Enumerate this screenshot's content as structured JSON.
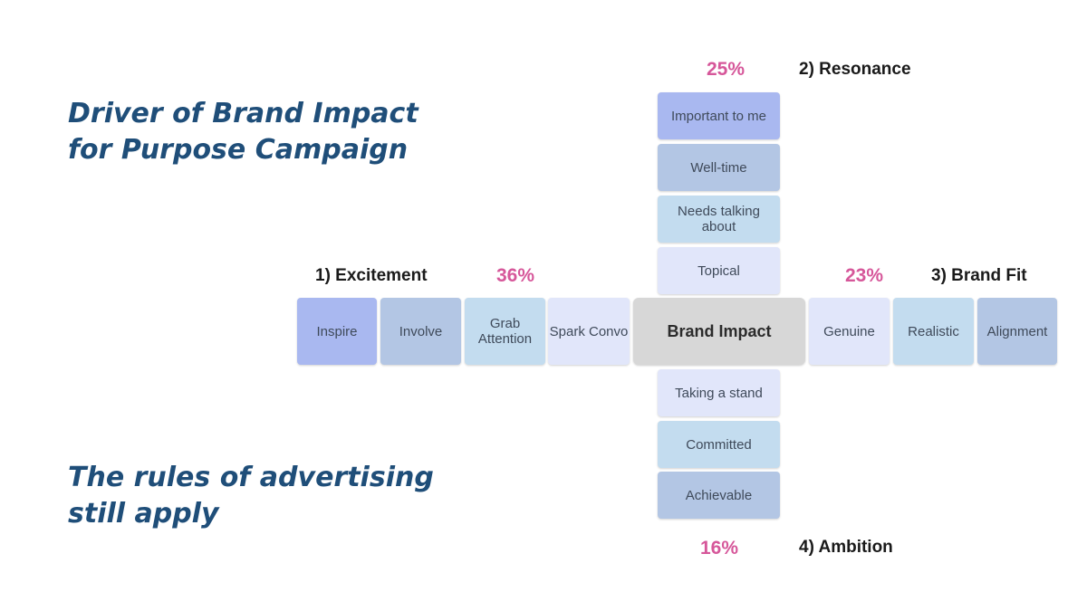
{
  "colors": {
    "title": "#1f4e79",
    "percent": "#d6579a",
    "hub": "#d7d7d7",
    "shade_1": "#a9b8f0",
    "shade_2": "#b3c6e4",
    "shade_3": "#c3dcef",
    "shade_4": "#e1e6fa"
  },
  "titles": {
    "top": [
      "Driver of Brand Impact",
      "for Purpose Campaign"
    ],
    "bottom": [
      "The rules of advertising",
      "still apply"
    ]
  },
  "hub": {
    "label": "Brand Impact"
  },
  "groups": {
    "excitement": {
      "label": "1) Excitement",
      "percent": "36%",
      "items": [
        {
          "label": "Inspire",
          "color": "#a9b8f0"
        },
        {
          "label": "Involve",
          "color": "#b3c6e4"
        },
        {
          "label": "Grab Attention",
          "color": "#c3dcef"
        },
        {
          "label": "Spark Convo",
          "color": "#e1e6fa"
        }
      ]
    },
    "resonance": {
      "label": "2) Resonance",
      "percent": "25%",
      "items": [
        {
          "label": "Important to me",
          "color": "#a9b8f0"
        },
        {
          "label": "Well-time",
          "color": "#b3c6e4"
        },
        {
          "label": "Needs talking about",
          "color": "#c3dcef"
        },
        {
          "label": "Topical",
          "color": "#e1e6fa"
        }
      ]
    },
    "brand_fit": {
      "label": "3) Brand Fit",
      "percent": "23%",
      "items": [
        {
          "label": "Genuine",
          "color": "#e1e6fa"
        },
        {
          "label": "Realistic",
          "color": "#c3dcef"
        },
        {
          "label": "Alignment",
          "color": "#b3c6e4"
        }
      ]
    },
    "ambition": {
      "label": "4) Ambition",
      "percent": "16%",
      "items": [
        {
          "label": "Taking a stand",
          "color": "#e1e6fa"
        },
        {
          "label": "Committed",
          "color": "#c3dcef"
        },
        {
          "label": "Achievable",
          "color": "#b3c6e4"
        }
      ]
    }
  }
}
